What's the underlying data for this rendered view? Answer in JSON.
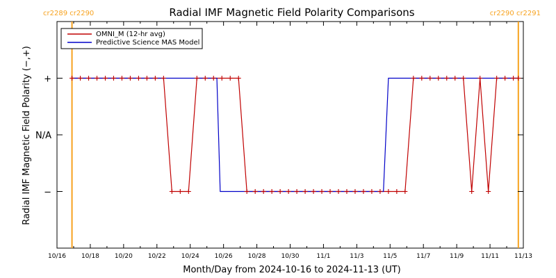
{
  "chart_data": {
    "type": "line",
    "title": "Radial IMF Magnetic Field Polarity Comparisons",
    "xlabel": "Month/Day from 2024-10-16 to 2024-11-13 (UT)",
    "ylabel": "Radial IMF Magnetic Field Polarity (−,+)",
    "x_range_days": [
      0,
      28
    ],
    "x_tick_labels": [
      "10/16",
      "10/18",
      "10/20",
      "10/22",
      "10/24",
      "10/26",
      "10/28",
      "10/30",
      "11/1",
      "11/3",
      "11/5",
      "11/7",
      "11/9",
      "11/11",
      "11/13"
    ],
    "y_range": [
      -2,
      2
    ],
    "y_ticks": [
      {
        "value": 1,
        "label": "+"
      },
      {
        "value": 0,
        "label": "N/A"
      },
      {
        "value": -1,
        "label": "−"
      }
    ],
    "grid": false,
    "legend_position": "top-left",
    "carrington_markers": [
      {
        "day": 0.9,
        "labels": [
          "cr2289",
          "cr2290"
        ],
        "label_side": "left"
      },
      {
        "day": 27.7,
        "labels": [
          "cr2290",
          "cr2291"
        ],
        "label_side": "right"
      }
    ],
    "series": [
      {
        "name": "OMNI_M (12-hr avg)",
        "color": "#c00000",
        "marker": "+",
        "x": [
          0.9,
          1.4,
          1.9,
          2.4,
          2.9,
          3.4,
          3.9,
          4.4,
          4.9,
          5.4,
          5.9,
          6.4,
          6.9,
          7.4,
          7.9,
          8.4,
          8.9,
          9.4,
          9.9,
          10.4,
          10.9,
          11.4,
          11.9,
          12.4,
          12.9,
          13.4,
          13.9,
          14.4,
          14.9,
          15.4,
          15.9,
          16.4,
          16.9,
          17.4,
          17.9,
          18.4,
          18.9,
          19.4,
          19.9,
          20.4,
          20.9,
          21.4,
          21.9,
          22.4,
          22.9,
          23.4,
          23.9,
          24.4,
          24.9,
          25.4,
          25.9,
          26.4,
          26.9,
          27.4,
          27.7
        ],
        "y": [
          1,
          1,
          1,
          1,
          1,
          1,
          1,
          1,
          1,
          1,
          1,
          1,
          -1,
          -1,
          -1,
          1,
          1,
          1,
          1,
          1,
          1,
          -1,
          -1,
          -1,
          -1,
          -1,
          -1,
          -1,
          -1,
          -1,
          -1,
          -1,
          -1,
          -1,
          -1,
          -1,
          -1,
          -1,
          -1,
          -1,
          -1,
          1,
          1,
          1,
          1,
          1,
          1,
          1,
          -1,
          1,
          -1,
          1,
          1,
          1,
          1
        ]
      },
      {
        "name": "Predictive Science MAS Model",
        "color": "#0000c8",
        "x": [
          0.9,
          9.6,
          9.8,
          19.6,
          19.9,
          27.7
        ],
        "y": [
          1,
          1,
          -1,
          -1,
          1,
          1
        ]
      }
    ]
  }
}
